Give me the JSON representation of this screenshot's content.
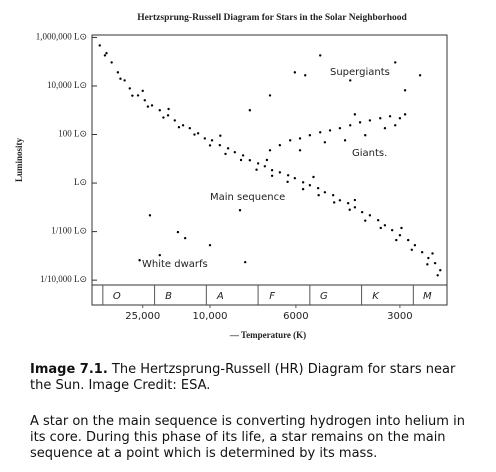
{
  "chart_data": {
    "type": "scatter",
    "title": "Hertzsprung-Russell Diagram for Stars in the Solar Neighborhood",
    "ylabel": "Luminosity",
    "xlabel": "— Temperature (K)",
    "xlim": [
      -0.48,
      6.38
    ],
    "ylim": [
      -4.2,
      6.1
    ],
    "xticks": [
      {
        "value": 0,
        "label": "O"
      },
      {
        "value": 1,
        "label": "B"
      },
      {
        "value": 2,
        "label": "A"
      },
      {
        "value": 3,
        "label": "F"
      },
      {
        "value": 4,
        "label": "G"
      },
      {
        "value": 5,
        "label": "K"
      },
      {
        "value": 6,
        "label": "M"
      }
    ],
    "xticks2": [
      {
        "value": 0.5,
        "label": "25,000"
      },
      {
        "value": 1.8,
        "label": "10,000"
      },
      {
        "value": 3.46,
        "label": "6000"
      },
      {
        "value": 5.47,
        "label": "3000"
      }
    ],
    "yticks": [
      {
        "value": 6,
        "label": "1,000,000 L⊙"
      },
      {
        "value": 4,
        "label": "10,000 L⊙"
      },
      {
        "value": 2,
        "label": "100 L⊙"
      },
      {
        "value": 0,
        "label": "L⊙"
      },
      {
        "value": -2,
        "label": "1/100 L⊙"
      },
      {
        "value": -4,
        "label": "1/10,000 L⊙"
      }
    ],
    "color": "#000000",
    "annotations": [
      "Supergiants",
      "Giants.",
      "Main sequence",
      "White dwarfs"
    ],
    "x": [
      -0.33,
      -0.23,
      -0.1,
      0.02,
      0.15,
      0.25,
      0.41,
      0.54,
      0.68,
      0.83,
      0.99,
      1.12,
      1.28,
      1.41,
      1.57,
      1.7,
      1.84,
      1.99,
      2.15,
      2.28,
      2.44,
      2.57,
      2.73,
      2.86,
      3.0,
      3.15,
      3.31,
      3.44,
      3.6,
      3.73,
      3.89,
      4.02,
      4.18,
      4.31,
      4.47,
      4.6,
      4.74,
      4.89,
      5.05,
      5.18,
      5.32,
      5.47,
      5.63,
      5.76,
      5.9,
      6.02,
      6.15,
      6.25,
      -0.2,
      0.07,
      0.3,
      0.6,
      0.9,
      1.2,
      1.5,
      1.8,
      2.1,
      2.4,
      2.7,
      3.0,
      3.3,
      3.6,
      3.9,
      4.2,
      4.5,
      4.8,
      5.1,
      5.4,
      5.7,
      6.0,
      6.2,
      0.5,
      1.0,
      2.0,
      2.9,
      3.8,
      4.6,
      5.5,
      6.1,
      2.96,
      3.15,
      3.35,
      3.54,
      3.73,
      3.93,
      4.12,
      4.31,
      4.51,
      4.7,
      4.89,
      5.09,
      5.28,
      5.47,
      5.57,
      5.18,
      4.8,
      4.41,
      4.02,
      3.54,
      4.6,
      5.38,
      3.44,
      3.64,
      3.93,
      4.51,
      5.38,
      5.86,
      5.57,
      2.96,
      2.57,
      0.64,
      1.18,
      1.32,
      1.8,
      2.48,
      0.83,
      0.44,
      2.38
    ],
    "y": [
      5.67,
      5.26,
      4.97,
      4.56,
      4.23,
      3.9,
      3.61,
      3.41,
      3.2,
      3.0,
      2.79,
      2.58,
      2.38,
      2.26,
      2.05,
      1.84,
      1.76,
      1.56,
      1.43,
      1.27,
      1.14,
      0.94,
      0.81,
      0.69,
      0.53,
      0.44,
      0.32,
      0.2,
      0.03,
      -0.09,
      -0.21,
      -0.38,
      -0.5,
      -0.71,
      -0.83,
      -1.0,
      -1.2,
      -1.33,
      -1.53,
      -1.74,
      -1.94,
      -2.15,
      -2.35,
      -2.56,
      -2.85,
      -3.09,
      -3.3,
      -3.59,
      5.35,
      4.3,
      3.6,
      3.15,
      2.7,
      2.3,
      2.0,
      1.55,
      1.2,
      0.95,
      0.55,
      0.3,
      0.05,
      -0.25,
      -0.5,
      -0.8,
      -1.1,
      -1.55,
      -1.85,
      -2.35,
      -2.75,
      -3.35,
      -3.8,
      3.8,
      3.05,
      1.95,
      0.95,
      0.25,
      -0.7,
      -1.85,
      -2.9,
      1.35,
      1.56,
      1.76,
      1.84,
      1.97,
      2.09,
      2.17,
      2.26,
      2.38,
      2.5,
      2.58,
      2.67,
      2.75,
      2.67,
      2.83,
      2.26,
      1.97,
      1.76,
      1.68,
      1.35,
      2.83,
      2.38,
      4.56,
      4.44,
      5.26,
      4.23,
      4.97,
      4.44,
      3.82,
      3.61,
      3.0,
      -1.33,
      -2.02,
      -2.27,
      -2.56,
      -3.26,
      -2.97,
      -3.18,
      -1.12
    ]
  },
  "caption": {
    "label": "Image 7.1.",
    "text": "The Hertzsprung-Russell (HR) Diagram for stars near the Sun. Image Credit: ESA."
  },
  "paragraph": "A star on the main sequence is converting hydrogen into helium in its core. During this phase of its life, a star remains on the main sequence at a point which is determined by its mass."
}
